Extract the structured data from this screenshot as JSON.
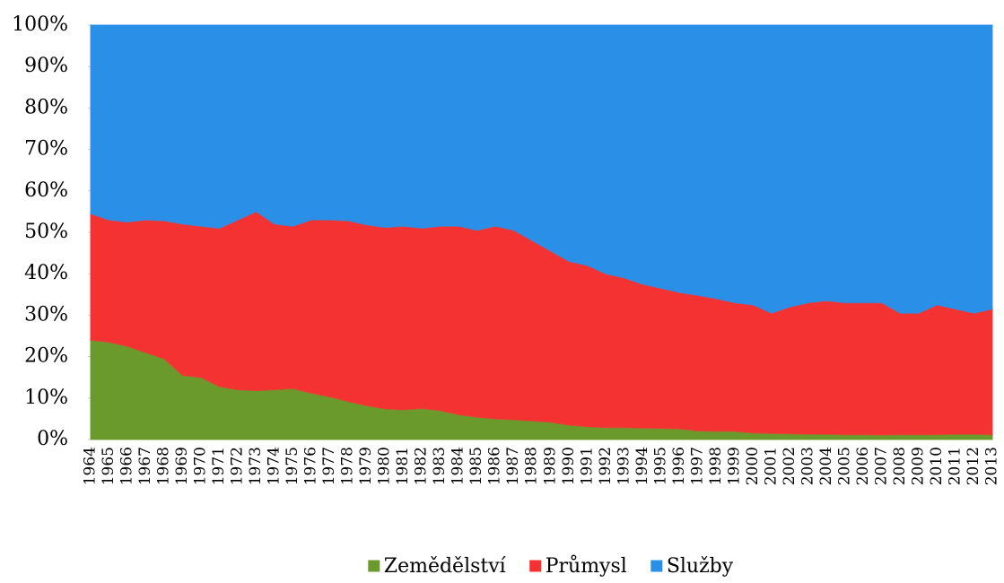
{
  "chart_data": {
    "type": "stacked_area",
    "categories": [
      "1964",
      "1965",
      "1966",
      "1967",
      "1968",
      "1969",
      "1970",
      "1971",
      "1972",
      "1973",
      "1974",
      "1975",
      "1976",
      "1977",
      "1978",
      "1979",
      "1980",
      "1981",
      "1982",
      "1983",
      "1984",
      "1985",
      "1986",
      "1987",
      "1988",
      "1989",
      "1990",
      "1991",
      "1992",
      "1993",
      "1994",
      "1995",
      "1996",
      "1997",
      "1998",
      "1999",
      "2000",
      "2001",
      "2002",
      "2003",
      "2004",
      "2005",
      "2006",
      "2007",
      "2008",
      "2009",
      "2010",
      "2011",
      "2012",
      "2013"
    ],
    "series": [
      {
        "name": "Zemědělství",
        "color": "#6b9a2c",
        "values": [
          24,
          23.5,
          22.5,
          21,
          19.5,
          15.5,
          15,
          12.8,
          12,
          11.8,
          12,
          12.3,
          11.2,
          10.3,
          9.2,
          8.2,
          7.4,
          7.2,
          7.5,
          7,
          6,
          5.4,
          5,
          4.8,
          4.5,
          4.2,
          3.5,
          3.1,
          2.9,
          2.9,
          2.8,
          2.7,
          2.6,
          2.1,
          2,
          2,
          1.6,
          1.5,
          1.4,
          1.3,
          1.3,
          1.2,
          1.2,
          1.1,
          1.2,
          1.2,
          1.2,
          1.3,
          1.3,
          1.2
        ]
      },
      {
        "name": "Průmysl",
        "color": "#f53232",
        "values": [
          30.5,
          29.5,
          30,
          32,
          33.3,
          36.5,
          36.5,
          38.2,
          41,
          43.2,
          40,
          39.2,
          41.8,
          42.7,
          43.6,
          43.6,
          43.8,
          44.3,
          43.5,
          44.5,
          45.5,
          45.1,
          46.5,
          45.7,
          43.5,
          41.3,
          39.5,
          38.9,
          37.1,
          36.1,
          34.7,
          33.8,
          32.9,
          32.7,
          32,
          31,
          30.9,
          29,
          30.6,
          31.7,
          32.2,
          31.8,
          31.8,
          31.9,
          29.3,
          29.3,
          31.3,
          30.2,
          29.2,
          30.3
        ]
      },
      {
        "name": "Služby",
        "color": "#2a8fe6",
        "values": [
          45.5,
          47,
          47.5,
          47,
          47.2,
          48,
          48.5,
          49,
          47,
          45,
          48,
          48.5,
          47,
          47,
          47.2,
          48.2,
          48.8,
          48.5,
          49,
          48.5,
          48.5,
          49.5,
          48.5,
          49.5,
          52,
          54.5,
          57,
          58,
          60,
          61,
          62.5,
          63.5,
          64.5,
          65.2,
          66,
          67,
          67.5,
          69.5,
          68,
          67,
          66.5,
          67,
          67,
          67,
          69.5,
          69.5,
          67.5,
          68.5,
          69.5,
          68.5
        ]
      }
    ],
    "ylim": [
      0,
      100
    ],
    "yticks": [
      {
        "value": 0,
        "label": "0%"
      },
      {
        "value": 10,
        "label": "10%"
      },
      {
        "value": 20,
        "label": "20%"
      },
      {
        "value": 30,
        "label": "30%"
      },
      {
        "value": 40,
        "label": "40%"
      },
      {
        "value": 50,
        "label": "50%"
      },
      {
        "value": 60,
        "label": "60%"
      },
      {
        "value": 70,
        "label": "70%"
      },
      {
        "value": 80,
        "label": "80%"
      },
      {
        "value": 90,
        "label": "90%"
      },
      {
        "value": 100,
        "label": "100%"
      }
    ],
    "legend": "bottom"
  }
}
